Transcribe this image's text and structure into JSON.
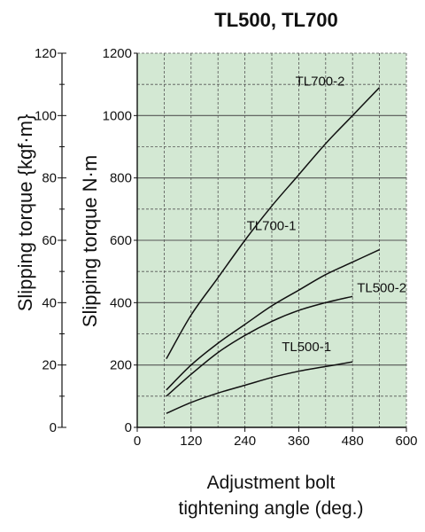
{
  "chart_data": {
    "type": "line",
    "title": "TL500, TL700",
    "xlabel_lines": [
      "Adjustment bolt",
      "tightening angle (deg.)"
    ],
    "ylabel": "Slipping torque N·m",
    "ylabel_secondary": "Slipping torque {kgf·m}",
    "xlim": [
      0,
      600
    ],
    "ylim": [
      0,
      1200
    ],
    "ylim_secondary": [
      0,
      120
    ],
    "x_ticks": [
      "0",
      "120",
      "240",
      "360",
      "480",
      "600"
    ],
    "x_tick_values": [
      0,
      120,
      240,
      360,
      480,
      600
    ],
    "y_ticks": [
      "0",
      "200",
      "400",
      "600",
      "800",
      "1000",
      "1200"
    ],
    "y_tick_values": [
      0,
      200,
      400,
      600,
      800,
      1000,
      1200
    ],
    "y2_ticks": [
      "0",
      "20",
      "40",
      "60",
      "80",
      "100",
      "120"
    ],
    "y2_tick_values": [
      0,
      20,
      40,
      60,
      80,
      100,
      120
    ],
    "grid": true,
    "plot_background": "#d3e8d3",
    "line_color": "#111111",
    "series": [
      {
        "name": "TL700-2",
        "x": [
          65,
          120,
          180,
          240,
          300,
          360,
          420,
          480,
          540
        ],
        "y": [
          220,
          360,
          480,
          600,
          710,
          810,
          910,
          1000,
          1090
        ]
      },
      {
        "name": "TL700-1",
        "x": [
          65,
          120,
          180,
          240,
          300,
          360,
          420,
          480,
          540
        ],
        "y": [
          120,
          200,
          270,
          330,
          390,
          440,
          490,
          530,
          570
        ]
      },
      {
        "name": "TL500-2",
        "x": [
          65,
          120,
          180,
          240,
          300,
          360,
          420,
          480
        ],
        "y": [
          100,
          170,
          240,
          295,
          340,
          375,
          400,
          420
        ]
      },
      {
        "name": "TL500-1",
        "x": [
          65,
          120,
          180,
          240,
          300,
          360,
          420,
          480
        ],
        "y": [
          45,
          80,
          110,
          135,
          160,
          180,
          195,
          210
        ]
      }
    ]
  }
}
